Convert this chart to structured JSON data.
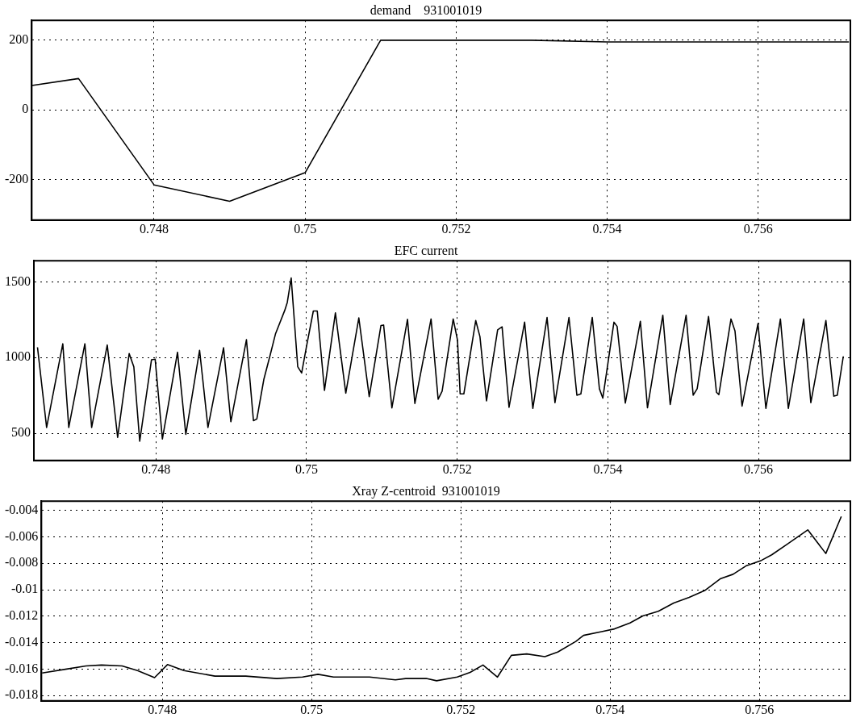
{
  "chart_data": [
    {
      "type": "line",
      "title": "demand    931001019",
      "x": [
        0.74638,
        0.747,
        0.748,
        0.749,
        0.75,
        0.751,
        0.753,
        0.754,
        0.7572
      ],
      "series": [
        {
          "color": "#000000",
          "values": [
            70,
            90,
            -215,
            -262,
            -180,
            200,
            200,
            195,
            195
          ]
        }
      ],
      "xlim": [
        0.74638,
        0.75722
      ],
      "xticks": [
        0.748,
        0.75,
        0.752,
        0.754,
        0.756
      ],
      "ylim": [
        -316,
        257
      ],
      "yticks": [
        -200,
        0,
        200
      ],
      "grid": true
    },
    {
      "type": "line",
      "title": "EFC current",
      "x": [
        0.746428,
        0.746549,
        0.746764,
        0.746843,
        0.747057,
        0.747147,
        0.747354,
        0.747492,
        0.747645,
        0.747707,
        0.747785,
        0.747941,
        0.74799,
        0.748086,
        0.748287,
        0.748397,
        0.74858,
        0.748691,
        0.748898,
        0.748995,
        0.749202,
        0.749295,
        0.74934,
        0.749433,
        0.74952,
        0.749589,
        0.74971,
        0.749744,
        0.749796,
        0.749883,
        0.749935,
        0.750003,
        0.75009,
        0.750142,
        0.750238,
        0.750383,
        0.750521,
        0.750694,
        0.750832,
        0.750988,
        0.751023,
        0.751133,
        0.75134,
        0.751438,
        0.751653,
        0.751747,
        0.7518,
        0.751947,
        0.752004,
        0.752039,
        0.752088,
        0.752246,
        0.752302,
        0.752389,
        0.752537,
        0.752596,
        0.752688,
        0.752895,
        0.753004,
        0.753193,
        0.753298,
        0.753484,
        0.753589,
        0.753642,
        0.753793,
        0.753888,
        0.753933,
        0.754081,
        0.754123,
        0.754232,
        0.754432,
        0.754526,
        0.75473,
        0.754828,
        0.755039,
        0.755133,
        0.755186,
        0.755337,
        0.755442,
        0.755474,
        0.755635,
        0.755688,
        0.755782,
        0.755993,
        0.756098,
        0.756291,
        0.756396,
        0.7566,
        0.756695,
        0.756895,
        0.757,
        0.757046,
        0.757126
      ],
      "series": [
        {
          "color": "#000000",
          "values": [
            1068,
            538,
            1091,
            538,
            1091,
            538,
            1083,
            473,
            1026,
            939,
            447,
            985,
            989,
            462,
            1035,
            492,
            1048,
            538,
            1065,
            576,
            1118,
            583,
            594,
            856,
            1023,
            1159,
            1311,
            1364,
            1526,
            939,
            898,
            1083,
            1308,
            1308,
            783,
            1295,
            765,
            1262,
            742,
            1212,
            1215,
            667,
            1253,
            697,
            1255,
            725,
            778,
            1255,
            1115,
            760,
            760,
            1245,
            1138,
            714,
            1183,
            1203,
            671,
            1234,
            664,
            1265,
            702,
            1265,
            751,
            760,
            1265,
            794,
            732,
            1234,
            1206,
            699,
            1240,
            668,
            1280,
            690,
            1280,
            751,
            794,
            1271,
            771,
            755,
            1255,
            1176,
            679,
            1225,
            664,
            1255,
            664,
            1255,
            702,
            1245,
            745,
            751,
            1008
          ]
        }
      ],
      "xlim": [
        0.74638,
        0.75722
      ],
      "xticks": [
        0.748,
        0.75,
        0.752,
        0.754,
        0.756
      ],
      "ylim": [
        320,
        1640
      ],
      "yticks": [
        500,
        1000,
        1500
      ],
      "grid": true
    },
    {
      "type": "line",
      "title": "Xray Z-centroid  931001019",
      "x": [
        0.74639,
        0.746701,
        0.746978,
        0.747185,
        0.747461,
        0.747668,
        0.747896,
        0.748069,
        0.74829,
        0.748705,
        0.749119,
        0.749534,
        0.749879,
        0.750086,
        0.750294,
        0.75057,
        0.750777,
        0.751123,
        0.751261,
        0.751537,
        0.751675,
        0.751952,
        0.752124,
        0.752297,
        0.752491,
        0.752677,
        0.752884,
        0.753126,
        0.753299,
        0.753541,
        0.753644,
        0.753886,
        0.754059,
        0.754266,
        0.754439,
        0.754646,
        0.754853,
        0.75506,
        0.755268,
        0.755475,
        0.755648,
        0.75582,
        0.756028,
        0.756166,
        0.756373,
        0.756649,
        0.756891,
        0.757098
      ],
      "series": [
        {
          "color": "#000000",
          "values": [
            -0.01629,
            -0.01601,
            -0.01576,
            -0.01569,
            -0.01576,
            -0.01611,
            -0.01664,
            -0.01566,
            -0.01611,
            -0.01653,
            -0.01653,
            -0.01671,
            -0.0166,
            -0.01639,
            -0.0166,
            -0.0166,
            -0.0166,
            -0.01681,
            -0.01671,
            -0.01671,
            -0.01688,
            -0.0166,
            -0.01625,
            -0.01569,
            -0.0166,
            -0.01496,
            -0.01485,
            -0.01506,
            -0.01471,
            -0.01391,
            -0.01345,
            -0.01317,
            -0.01296,
            -0.01251,
            -0.01198,
            -0.01163,
            -0.011,
            -0.01058,
            -0.01006,
            -0.00918,
            -0.00883,
            -0.0082,
            -0.00778,
            -0.00736,
            -0.00656,
            -0.00547,
            -0.00726,
            -0.00446
          ]
        }
      ],
      "xlim": [
        0.74638,
        0.75722
      ],
      "xticks": [
        0.748,
        0.75,
        0.752,
        0.754,
        0.756
      ],
      "ylim": [
        -0.0184,
        -0.0033
      ],
      "yticks": [
        -0.018,
        -0.016,
        -0.014,
        -0.012,
        -0.01,
        -0.008,
        -0.006,
        -0.004
      ],
      "grid": true
    }
  ]
}
